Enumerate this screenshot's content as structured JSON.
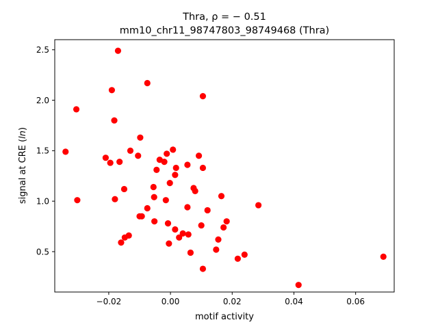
{
  "chart_data": {
    "type": "scatter",
    "title_line1": "Thra, ρ = − 0.51",
    "title_line2": "mm10_chr11_98747803_98749468 (Thra)",
    "xlabel": "motif activity",
    "ylabel": "signal at CRE (ln)",
    "xlim": [
      -0.0375,
      0.0725
    ],
    "ylim": [
      0.1,
      2.6
    ],
    "xticks": [
      -0.02,
      0.0,
      0.02,
      0.04,
      0.06
    ],
    "xtick_labels": [
      "−0.02",
      "0.00",
      "0.02",
      "0.04",
      "0.06"
    ],
    "yticks": [
      0.5,
      1.0,
      1.5,
      2.0,
      2.5
    ],
    "ytick_labels": [
      "0.5",
      "1.0",
      "1.5",
      "2.0",
      "2.5"
    ],
    "grid": false,
    "marker_color": "#ff0000",
    "points": [
      {
        "x": -0.034,
        "y": 1.49
      },
      {
        "x": -0.0305,
        "y": 1.91
      },
      {
        "x": -0.0302,
        "y": 1.01
      },
      {
        "x": -0.021,
        "y": 1.43
      },
      {
        "x": -0.0195,
        "y": 1.38
      },
      {
        "x": -0.019,
        "y": 2.1
      },
      {
        "x": -0.0182,
        "y": 1.8
      },
      {
        "x": -0.018,
        "y": 1.02
      },
      {
        "x": -0.017,
        "y": 2.49
      },
      {
        "x": -0.0165,
        "y": 1.39
      },
      {
        "x": -0.016,
        "y": 0.59
      },
      {
        "x": -0.015,
        "y": 1.12
      },
      {
        "x": -0.0148,
        "y": 0.64
      },
      {
        "x": -0.0135,
        "y": 0.66
      },
      {
        "x": -0.013,
        "y": 1.5
      },
      {
        "x": -0.0105,
        "y": 1.45
      },
      {
        "x": -0.01,
        "y": 0.85
      },
      {
        "x": -0.0098,
        "y": 1.63
      },
      {
        "x": -0.0093,
        "y": 0.85
      },
      {
        "x": -0.0075,
        "y": 2.17
      },
      {
        "x": -0.0075,
        "y": 0.93
      },
      {
        "x": -0.0055,
        "y": 1.14
      },
      {
        "x": -0.0053,
        "y": 1.04
      },
      {
        "x": -0.0052,
        "y": 0.8
      },
      {
        "x": -0.0045,
        "y": 1.31
      },
      {
        "x": -0.0035,
        "y": 1.41
      },
      {
        "x": -0.002,
        "y": 1.39
      },
      {
        "x": -0.0015,
        "y": 1.01
      },
      {
        "x": -0.0012,
        "y": 1.47
      },
      {
        "x": -0.0008,
        "y": 0.78
      },
      {
        "x": -0.0005,
        "y": 0.58
      },
      {
        "x": -0.0002,
        "y": 1.18
      },
      {
        "x": 0.0008,
        "y": 1.51
      },
      {
        "x": 0.0015,
        "y": 1.26
      },
      {
        "x": 0.0015,
        "y": 0.72
      },
      {
        "x": 0.0018,
        "y": 1.33
      },
      {
        "x": 0.0028,
        "y": 0.64
      },
      {
        "x": 0.004,
        "y": 0.68
      },
      {
        "x": 0.0055,
        "y": 0.94
      },
      {
        "x": 0.0055,
        "y": 1.36
      },
      {
        "x": 0.0058,
        "y": 0.67
      },
      {
        "x": 0.0065,
        "y": 0.49
      },
      {
        "x": 0.0075,
        "y": 1.13
      },
      {
        "x": 0.008,
        "y": 1.1
      },
      {
        "x": 0.0092,
        "y": 1.45
      },
      {
        "x": 0.01,
        "y": 0.76
      },
      {
        "x": 0.0105,
        "y": 2.04
      },
      {
        "x": 0.0105,
        "y": 1.33
      },
      {
        "x": 0.0105,
        "y": 0.33
      },
      {
        "x": 0.012,
        "y": 0.91
      },
      {
        "x": 0.0148,
        "y": 0.52
      },
      {
        "x": 0.0155,
        "y": 0.62
      },
      {
        "x": 0.0165,
        "y": 1.05
      },
      {
        "x": 0.0172,
        "y": 0.74
      },
      {
        "x": 0.0182,
        "y": 0.8
      },
      {
        "x": 0.0218,
        "y": 0.43
      },
      {
        "x": 0.024,
        "y": 0.47
      },
      {
        "x": 0.0285,
        "y": 0.96
      },
      {
        "x": 0.0415,
        "y": 0.17
      },
      {
        "x": 0.069,
        "y": 0.45
      }
    ]
  }
}
